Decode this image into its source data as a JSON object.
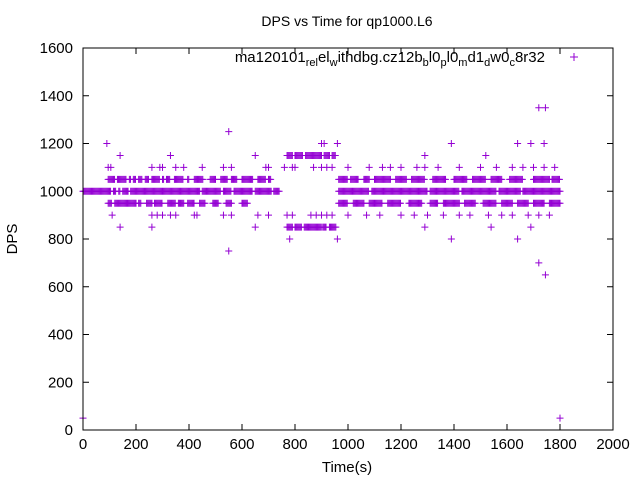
{
  "chart_data": {
    "type": "scatter",
    "title": "DPS vs Time for qp1000.L6",
    "xlabel": "Time(s)",
    "ylabel": "DPS",
    "xlim": [
      0,
      2000
    ],
    "ylim": [
      0,
      1600
    ],
    "xticks": [
      "0",
      "200",
      "400",
      "600",
      "800",
      "1000",
      "1200",
      "1400",
      "1600",
      "1800",
      "2000"
    ],
    "yticks": [
      "0",
      "200",
      "400",
      "600",
      "800",
      "1000",
      "1200",
      "1400",
      "1600"
    ],
    "grid": false,
    "legend_placement": "top-right",
    "series": [
      {
        "name": "ma120101_rel_withdbg.cz12b_bl0_pl0_md1_dw0_c8r32",
        "legend_parts": [
          [
            "ma120101",
            ""
          ],
          [
            "rel",
            "sub"
          ],
          [
            "el",
            ""
          ],
          [
            "w",
            "sub"
          ],
          [
            "ithdbg.cz12b",
            ""
          ],
          [
            "b",
            "sub"
          ],
          [
            "l0",
            ""
          ],
          [
            "p",
            "sub"
          ],
          [
            "l0",
            ""
          ],
          [
            "m",
            "sub"
          ],
          [
            "d1",
            ""
          ],
          [
            "d",
            "sub"
          ],
          [
            "w0",
            ""
          ],
          [
            "c",
            "sub"
          ],
          [
            "8r32",
            ""
          ]
        ],
        "color": "#9400d3",
        "marker": "plus",
        "dense_bands": [
          {
            "y": 1000,
            "ranges": [
              [
                0,
                105
              ],
              [
                115,
                125
              ],
              [
                135,
                140
              ],
              [
                150,
                170
              ],
              [
                180,
                440
              ],
              [
                450,
                520
              ],
              [
                530,
                560
              ],
              [
                570,
                640
              ],
              [
                650,
                710
              ],
              [
                720,
                740
              ],
              [
                965,
                1080
              ],
              [
                1090,
                1300
              ],
              [
                1310,
                1420
              ],
              [
                1430,
                1560
              ],
              [
                1570,
                1650
              ],
              [
                1660,
                1800
              ]
            ]
          },
          {
            "y": 1050,
            "ranges": [
              [
                95,
                120
              ],
              [
                130,
                165
              ],
              [
                175,
                180
              ],
              [
                190,
                200
              ],
              [
                210,
                225
              ],
              [
                235,
                250
              ],
              [
                260,
                290
              ],
              [
                300,
                305
              ],
              [
                315,
                330
              ],
              [
                345,
                380
              ],
              [
                395,
                400
              ],
              [
                420,
                455
              ],
              [
                480,
                500
              ],
              [
                520,
                545
              ],
              [
                560,
                580
              ],
              [
                600,
                640
              ],
              [
                660,
                690
              ],
              [
                700,
                710
              ],
              [
                965,
                1000
              ],
              [
                1010,
                1040
              ],
              [
                1060,
                1080
              ],
              [
                1100,
                1160
              ],
              [
                1180,
                1220
              ],
              [
                1240,
                1290
              ],
              [
                1320,
                1370
              ],
              [
                1400,
                1450
              ],
              [
                1470,
                1520
              ],
              [
                1540,
                1580
              ],
              [
                1610,
                1660
              ],
              [
                1700,
                1760
              ],
              [
                1770,
                1800
              ]
            ]
          },
          {
            "y": 950,
            "ranges": [
              [
                95,
                110
              ],
              [
                120,
                200
              ],
              [
                210,
                220
              ],
              [
                240,
                260
              ],
              [
                270,
                300
              ],
              [
                320,
                350
              ],
              [
                360,
                380
              ],
              [
                395,
                420
              ],
              [
                440,
                460
              ],
              [
                490,
                510
              ],
              [
                540,
                560
              ],
              [
                600,
                620
              ],
              [
                965,
                1000
              ],
              [
                1020,
                1060
              ],
              [
                1080,
                1130
              ],
              [
                1150,
                1200
              ],
              [
                1230,
                1280
              ],
              [
                1310,
                1340
              ],
              [
                1360,
                1420
              ],
              [
                1440,
                1480
              ],
              [
                1510,
                1560
              ],
              [
                1580,
                1620
              ],
              [
                1640,
                1680
              ],
              [
                1700,
                1740
              ],
              [
                1760,
                1800
              ]
            ]
          },
          {
            "y": 1150,
            "ranges": [
              [
                770,
                790
              ],
              [
                800,
                830
              ],
              [
                840,
                900
              ],
              [
                910,
                930
              ],
              [
                940,
                955
              ]
            ]
          },
          {
            "y": 850,
            "ranges": [
              [
                770,
                790
              ],
              [
                800,
                825
              ],
              [
                835,
                900
              ],
              [
                905,
                920
              ],
              [
                930,
                955
              ]
            ]
          }
        ],
        "sparse_points": [
          [
            95,
            1100
          ],
          [
            105,
            1100
          ],
          [
            140,
            1150
          ],
          [
            260,
            1100
          ],
          [
            290,
            1100
          ],
          [
            300,
            1100
          ],
          [
            330,
            1150
          ],
          [
            350,
            1100
          ],
          [
            380,
            1100
          ],
          [
            450,
            1100
          ],
          [
            530,
            1100
          ],
          [
            560,
            1100
          ],
          [
            650,
            1150
          ],
          [
            690,
            1100
          ],
          [
            700,
            1100
          ],
          [
            110,
            900
          ],
          [
            260,
            900
          ],
          [
            280,
            900
          ],
          [
            300,
            900
          ],
          [
            330,
            900
          ],
          [
            350,
            900
          ],
          [
            420,
            900
          ],
          [
            430,
            900
          ],
          [
            530,
            900
          ],
          [
            560,
            900
          ],
          [
            660,
            900
          ],
          [
            700,
            900
          ],
          [
            760,
            1100
          ],
          [
            790,
            1100
          ],
          [
            800,
            1100
          ],
          [
            870,
            1100
          ],
          [
            900,
            1100
          ],
          [
            920,
            1100
          ],
          [
            940,
            1100
          ],
          [
            770,
            900
          ],
          [
            790,
            900
          ],
          [
            860,
            900
          ],
          [
            880,
            900
          ],
          [
            900,
            900
          ],
          [
            920,
            900
          ],
          [
            940,
            900
          ],
          [
            1000,
            1100
          ],
          [
            1080,
            1100
          ],
          [
            1130,
            1100
          ],
          [
            1160,
            1100
          ],
          [
            1200,
            1100
          ],
          [
            1260,
            1100
          ],
          [
            1290,
            1100
          ],
          [
            1340,
            1100
          ],
          [
            1420,
            1100
          ],
          [
            1500,
            1100
          ],
          [
            1560,
            1100
          ],
          [
            1620,
            1100
          ],
          [
            1660,
            1100
          ],
          [
            1700,
            1100
          ],
          [
            1740,
            1100
          ],
          [
            1780,
            1100
          ],
          [
            1000,
            900
          ],
          [
            1070,
            900
          ],
          [
            1120,
            900
          ],
          [
            1200,
            900
          ],
          [
            1250,
            900
          ],
          [
            1300,
            900
          ],
          [
            1360,
            900
          ],
          [
            1420,
            900
          ],
          [
            1460,
            900
          ],
          [
            1530,
            900
          ],
          [
            1580,
            900
          ],
          [
            1620,
            900
          ],
          [
            1680,
            900
          ],
          [
            1720,
            900
          ],
          [
            1760,
            900
          ],
          [
            0,
            50
          ],
          [
            90,
            1200
          ],
          [
            140,
            850
          ],
          [
            260,
            850
          ],
          [
            550,
            1250
          ],
          [
            550,
            750
          ],
          [
            650,
            850
          ],
          [
            780,
            800
          ],
          [
            900,
            1200
          ],
          [
            910,
            1200
          ],
          [
            960,
            1200
          ],
          [
            960,
            800
          ],
          [
            1290,
            1150
          ],
          [
            1290,
            850
          ],
          [
            1390,
            1200
          ],
          [
            1390,
            800
          ],
          [
            1520,
            1150
          ],
          [
            1540,
            850
          ],
          [
            1640,
            1200
          ],
          [
            1640,
            800
          ],
          [
            1690,
            1200
          ],
          [
            1740,
            1200
          ],
          [
            1690,
            850
          ],
          [
            1720,
            1350
          ],
          [
            1745,
            1350
          ],
          [
            1720,
            700
          ],
          [
            1745,
            650
          ],
          [
            1800,
            50
          ]
        ]
      }
    ]
  }
}
